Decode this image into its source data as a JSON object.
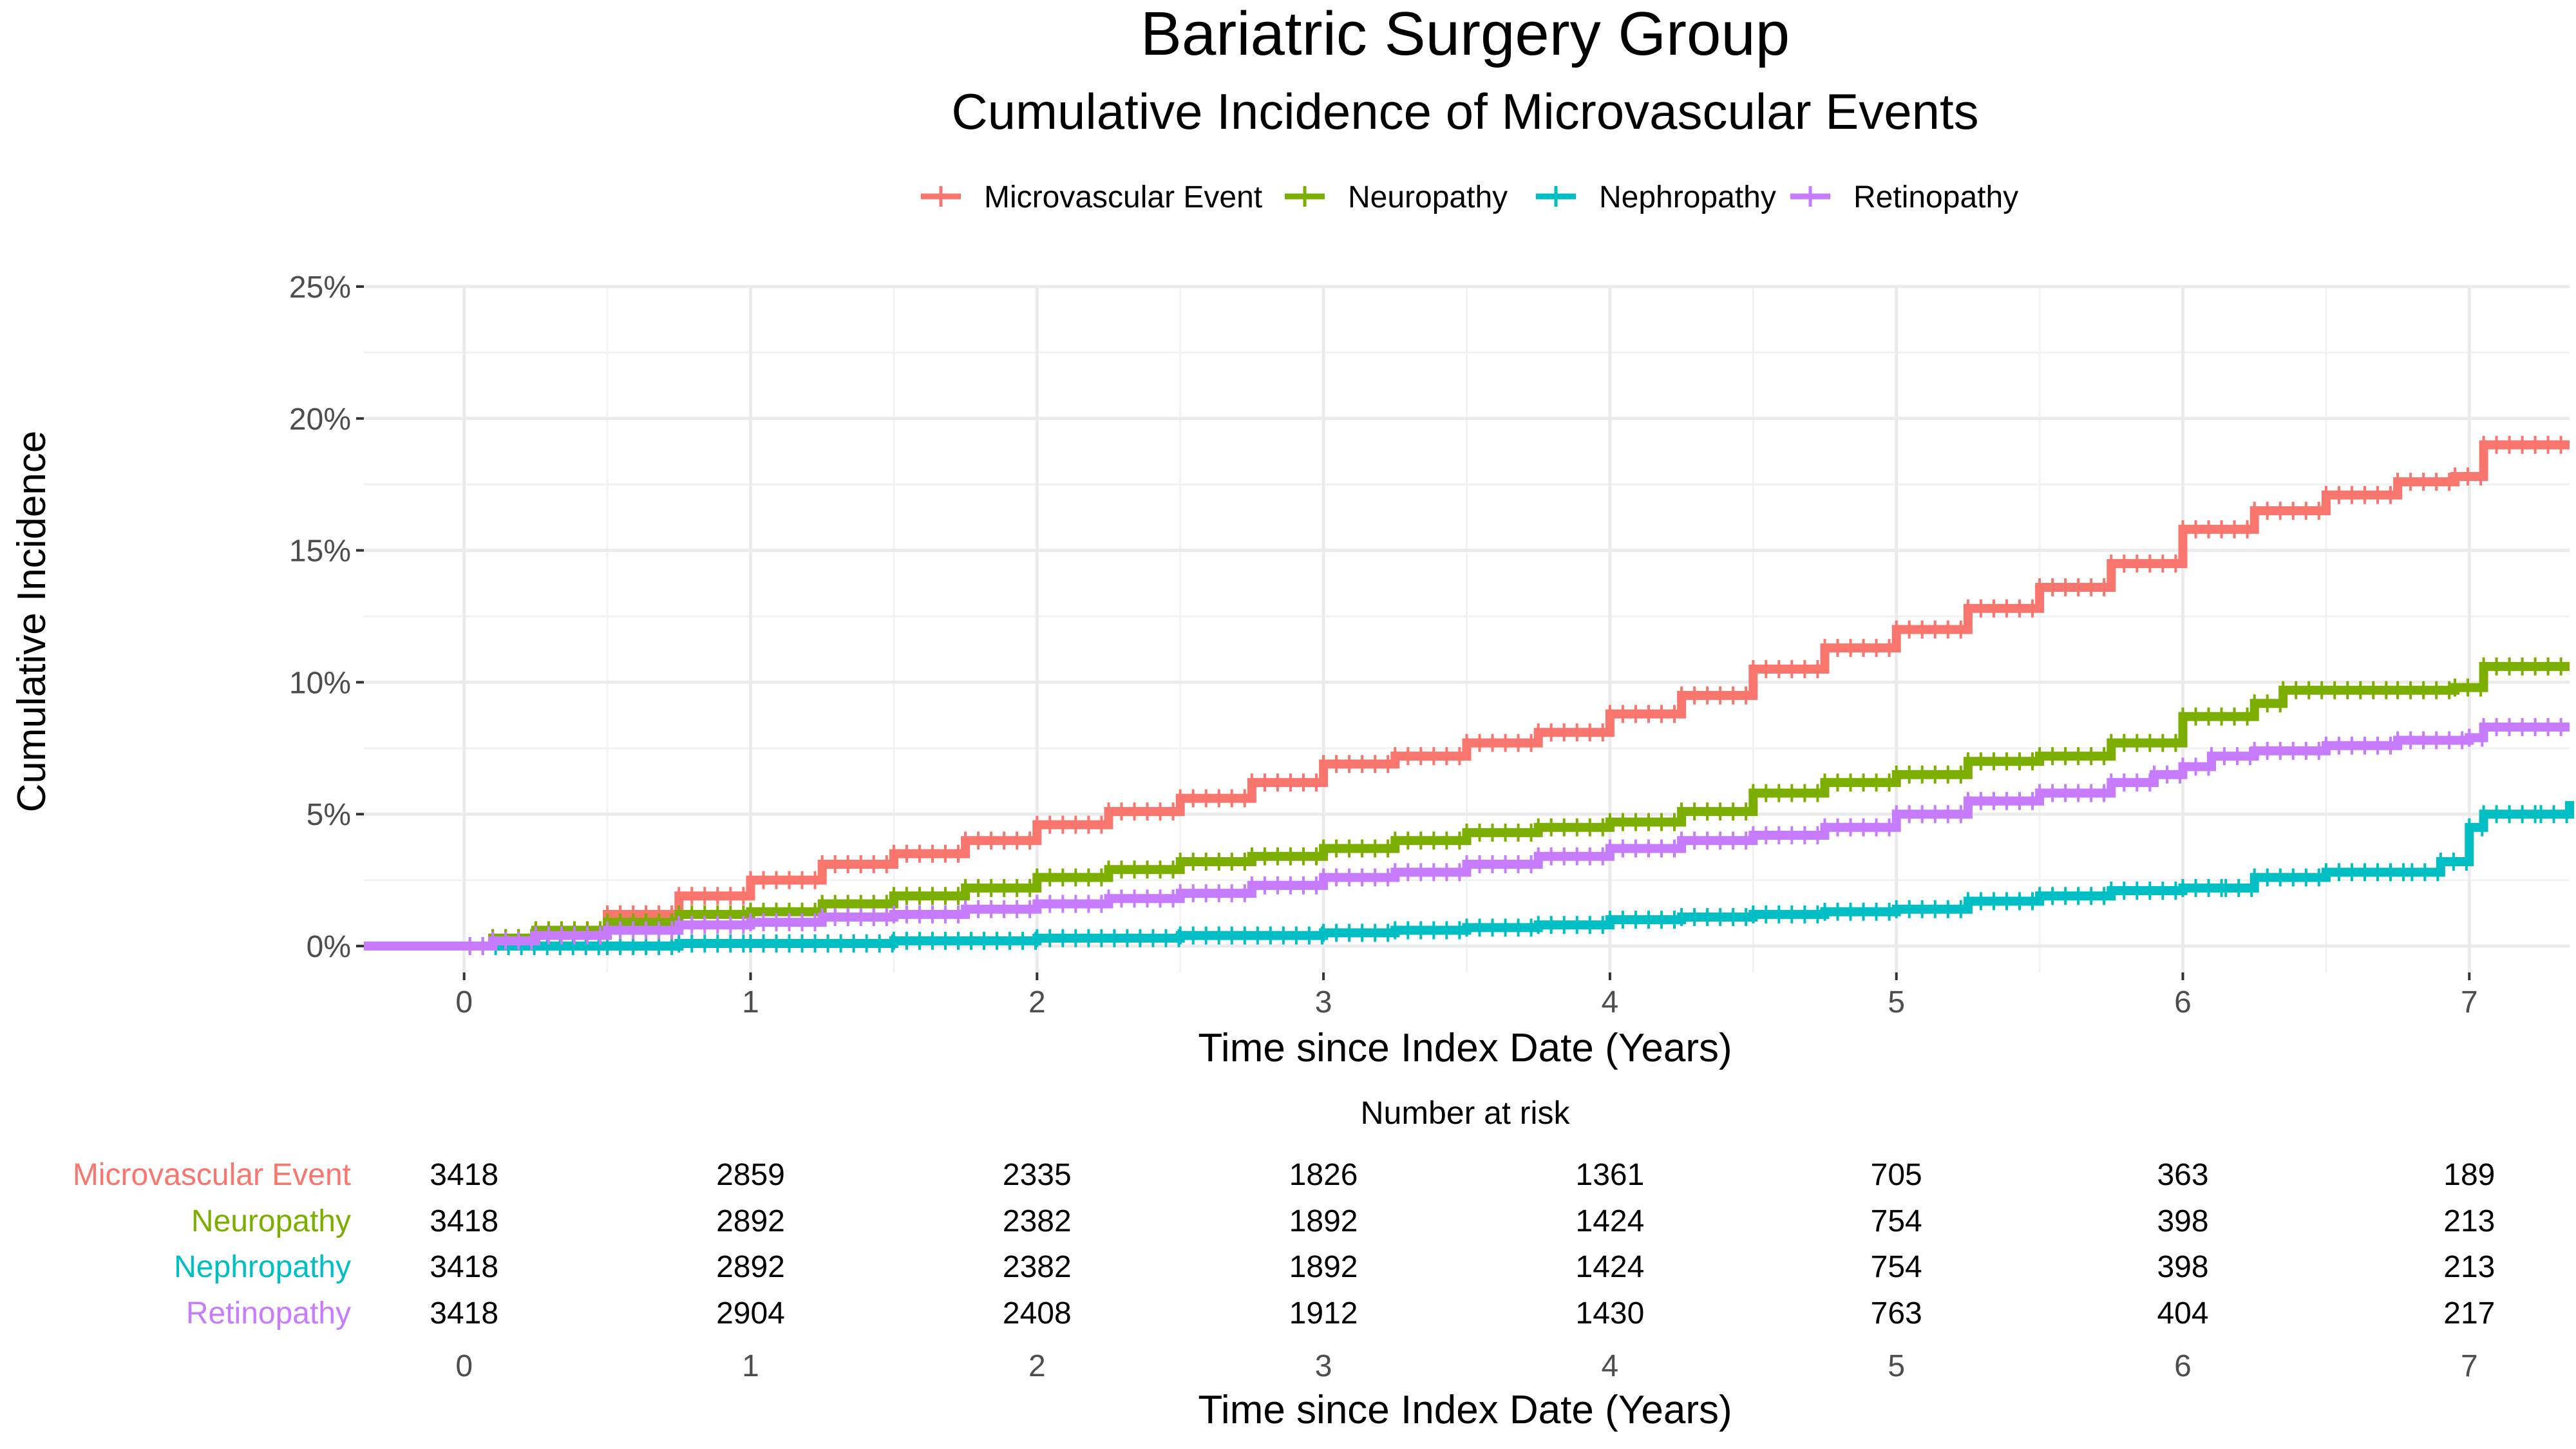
{
  "chart_data": {
    "type": "line",
    "title": "Bariatric Surgery Group",
    "subtitle": "Cumulative Incidence of Microvascular Events",
    "xlabel": "Time since Index Date (Years)",
    "ylabel": "Cumulative Incidence",
    "xlim": [
      -0.35,
      7.35
    ],
    "ylim": [
      -0.01,
      0.25
    ],
    "x_ticks": [
      0,
      1,
      2,
      3,
      4,
      5,
      6,
      7
    ],
    "y_ticks": [
      0,
      0.05,
      0.1,
      0.15,
      0.2,
      0.25
    ],
    "y_tick_labels": [
      "0%",
      "5%",
      "10%",
      "15%",
      "20%",
      "25%"
    ],
    "grid": true,
    "legend_position": "top",
    "series": [
      {
        "name": "Microvascular Event",
        "color": "#F8766D",
        "points": [
          [
            -0.35,
            0
          ],
          [
            0,
            0
          ],
          [
            0.1,
            0.003
          ],
          [
            0.25,
            0.006
          ],
          [
            0.5,
            0.012
          ],
          [
            0.75,
            0.019
          ],
          [
            1,
            0.025
          ],
          [
            1.25,
            0.031
          ],
          [
            1.5,
            0.035
          ],
          [
            1.75,
            0.04
          ],
          [
            2,
            0.046
          ],
          [
            2.25,
            0.051
          ],
          [
            2.5,
            0.056
          ],
          [
            2.75,
            0.062
          ],
          [
            3,
            0.069
          ],
          [
            3.25,
            0.072
          ],
          [
            3.5,
            0.077
          ],
          [
            3.75,
            0.081
          ],
          [
            4,
            0.088
          ],
          [
            4.25,
            0.095
          ],
          [
            4.5,
            0.105
          ],
          [
            4.75,
            0.113
          ],
          [
            5,
            0.12
          ],
          [
            5.25,
            0.128
          ],
          [
            5.5,
            0.136
          ],
          [
            5.75,
            0.145
          ],
          [
            6,
            0.158
          ],
          [
            6.25,
            0.165
          ],
          [
            6.5,
            0.171
          ],
          [
            6.75,
            0.176
          ],
          [
            6.95,
            0.178
          ],
          [
            7.05,
            0.19
          ],
          [
            7.35,
            0.19
          ]
        ]
      },
      {
        "name": "Neuropathy",
        "color": "#7CAE00",
        "points": [
          [
            -0.35,
            0
          ],
          [
            0,
            0
          ],
          [
            0.1,
            0.003
          ],
          [
            0.25,
            0.006
          ],
          [
            0.5,
            0.009
          ],
          [
            0.75,
            0.012
          ],
          [
            1,
            0.013
          ],
          [
            1.25,
            0.016
          ],
          [
            1.5,
            0.019
          ],
          [
            1.75,
            0.022
          ],
          [
            2,
            0.026
          ],
          [
            2.25,
            0.029
          ],
          [
            2.5,
            0.032
          ],
          [
            2.75,
            0.034
          ],
          [
            3,
            0.037
          ],
          [
            3.25,
            0.04
          ],
          [
            3.5,
            0.043
          ],
          [
            3.75,
            0.045
          ],
          [
            4,
            0.047
          ],
          [
            4.25,
            0.051
          ],
          [
            4.5,
            0.058
          ],
          [
            4.75,
            0.062
          ],
          [
            5,
            0.065
          ],
          [
            5.25,
            0.07
          ],
          [
            5.5,
            0.072
          ],
          [
            5.75,
            0.077
          ],
          [
            6,
            0.087
          ],
          [
            6.25,
            0.092
          ],
          [
            6.35,
            0.097
          ],
          [
            6.75,
            0.097
          ],
          [
            6.95,
            0.098
          ],
          [
            7.05,
            0.106
          ],
          [
            7.35,
            0.106
          ]
        ]
      },
      {
        "name": "Nephropathy",
        "color": "#00BFC4",
        "points": [
          [
            -0.35,
            0
          ],
          [
            0,
            0
          ],
          [
            0.5,
            0.0
          ],
          [
            0.75,
            0.001
          ],
          [
            1,
            0.001
          ],
          [
            1.5,
            0.002
          ],
          [
            2,
            0.003
          ],
          [
            2.5,
            0.004
          ],
          [
            3,
            0.005
          ],
          [
            3.25,
            0.006
          ],
          [
            3.5,
            0.007
          ],
          [
            3.75,
            0.008
          ],
          [
            4,
            0.01
          ],
          [
            4.25,
            0.011
          ],
          [
            4.5,
            0.012
          ],
          [
            4.75,
            0.013
          ],
          [
            5,
            0.014
          ],
          [
            5.25,
            0.017
          ],
          [
            5.5,
            0.019
          ],
          [
            5.75,
            0.021
          ],
          [
            6,
            0.022
          ],
          [
            6.15,
            0.022
          ],
          [
            6.25,
            0.026
          ],
          [
            6.5,
            0.028
          ],
          [
            6.8,
            0.028
          ],
          [
            6.9,
            0.032
          ],
          [
            7,
            0.045
          ],
          [
            7.05,
            0.05
          ],
          [
            7.25,
            0.05
          ],
          [
            7.35,
            0.055
          ]
        ]
      },
      {
        "name": "Retinopathy",
        "color": "#C77CFF",
        "points": [
          [
            -0.35,
            0
          ],
          [
            0,
            0
          ],
          [
            0.1,
            0.002
          ],
          [
            0.25,
            0.004
          ],
          [
            0.5,
            0.006
          ],
          [
            0.75,
            0.008
          ],
          [
            1,
            0.009
          ],
          [
            1.25,
            0.011
          ],
          [
            1.5,
            0.012
          ],
          [
            1.75,
            0.014
          ],
          [
            2,
            0.016
          ],
          [
            2.25,
            0.018
          ],
          [
            2.5,
            0.02
          ],
          [
            2.75,
            0.023
          ],
          [
            3,
            0.026
          ],
          [
            3.25,
            0.028
          ],
          [
            3.5,
            0.031
          ],
          [
            3.75,
            0.034
          ],
          [
            4,
            0.037
          ],
          [
            4.25,
            0.04
          ],
          [
            4.5,
            0.042
          ],
          [
            4.75,
            0.045
          ],
          [
            5,
            0.05
          ],
          [
            5.25,
            0.055
          ],
          [
            5.5,
            0.058
          ],
          [
            5.75,
            0.062
          ],
          [
            5.9,
            0.065
          ],
          [
            6,
            0.068
          ],
          [
            6.1,
            0.072
          ],
          [
            6.25,
            0.074
          ],
          [
            6.5,
            0.076
          ],
          [
            6.75,
            0.078
          ],
          [
            7,
            0.079
          ],
          [
            7.05,
            0.083
          ],
          [
            7.35,
            0.083
          ]
        ]
      }
    ],
    "risk_table": {
      "title": "Number at risk",
      "xlabel": "Time since Index Date (Years)",
      "times": [
        0,
        1,
        2,
        3,
        4,
        5,
        6,
        7
      ],
      "rows": [
        {
          "name": "Microvascular Event",
          "color": "#F8766D",
          "values": [
            3418,
            2859,
            2335,
            1826,
            1361,
            705,
            363,
            189
          ]
        },
        {
          "name": "Neuropathy",
          "color": "#7CAE00",
          "values": [
            3418,
            2892,
            2382,
            1892,
            1424,
            754,
            398,
            213
          ]
        },
        {
          "name": "Nephropathy",
          "color": "#00BFC4",
          "values": [
            3418,
            2892,
            2382,
            1892,
            1424,
            754,
            398,
            213
          ]
        },
        {
          "name": "Retinopathy",
          "color": "#C77CFF",
          "values": [
            3418,
            2904,
            2408,
            1912,
            1430,
            763,
            404,
            217
          ]
        }
      ]
    }
  }
}
